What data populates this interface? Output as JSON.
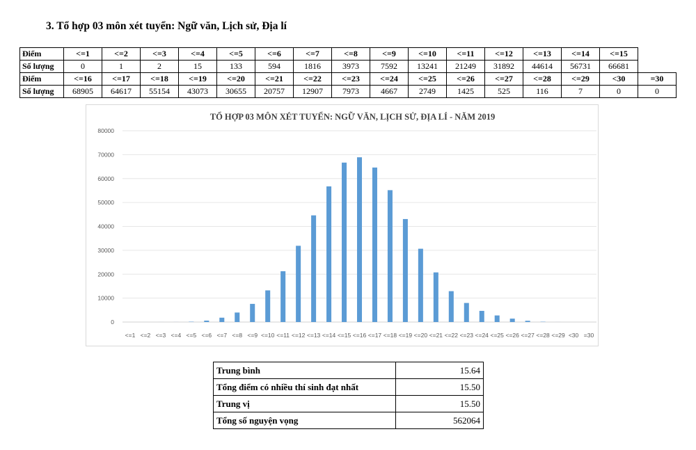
{
  "heading": "3. Tổ hợp 03 môn xét tuyển: Ngữ văn, Lịch sử, Địa lí",
  "score_table": {
    "row_label_score": "Điểm",
    "row_label_count": "Số lượng",
    "block1": {
      "scores": [
        "<=1",
        "<=2",
        "<=3",
        "<=4",
        "<=5",
        "<=6",
        "<=7",
        "<=8",
        "<=9",
        "<=10",
        "<=11",
        "<=12",
        "<=13",
        "<=14",
        "<=15"
      ],
      "counts": [
        "0",
        "1",
        "2",
        "15",
        "133",
        "594",
        "1816",
        "3973",
        "7592",
        "13241",
        "21249",
        "31892",
        "44614",
        "56731",
        "66681"
      ]
    },
    "block2": {
      "scores": [
        "<=16",
        "<=17",
        "<=18",
        "<=19",
        "<=20",
        "<=21",
        "<=22",
        "<=23",
        "<=24",
        "<=25",
        "<=26",
        "<=27",
        "<=28",
        "<=29",
        "<30",
        "=30"
      ],
      "counts": [
        "68905",
        "64617",
        "55154",
        "43073",
        "30655",
        "20757",
        "12907",
        "7973",
        "4667",
        "2749",
        "1425",
        "525",
        "116",
        "7",
        "0",
        "0"
      ]
    }
  },
  "chart_data": {
    "type": "bar",
    "title": "TỔ HỢP 03 MÔN XÉT TUYỂN: NGỮ VĂN, LỊCH SỬ, ĐỊA LÍ - NĂM 2019",
    "categories": [
      "<=1",
      "<=2",
      "<=3",
      "<=4",
      "<=5",
      "<=6",
      "<=7",
      "<=8",
      "<=9",
      "<=10",
      "<=11",
      "<=12",
      "<=13",
      "<=14",
      "<=15",
      "<=16",
      "<=17",
      "<=18",
      "<=19",
      "<=20",
      "<=21",
      "<=22",
      "<=23",
      "<=24",
      "<=25",
      "<=26",
      "<=27",
      "<=28",
      "<=29",
      "<30",
      "=30"
    ],
    "values": [
      0,
      1,
      2,
      15,
      133,
      594,
      1816,
      3973,
      7592,
      13241,
      21249,
      31892,
      44614,
      56731,
      66681,
      68905,
      64617,
      55154,
      43073,
      30655,
      20757,
      12907,
      7973,
      4667,
      2749,
      1425,
      525,
      116,
      7,
      0,
      0
    ],
    "ylim": [
      0,
      80000
    ],
    "yticks": [
      0,
      10000,
      20000,
      30000,
      40000,
      50000,
      60000,
      70000,
      80000
    ],
    "xlabel": "",
    "ylabel": "",
    "grid": true,
    "bar_color": "#5b9bd5"
  },
  "stats": [
    {
      "label": "Trung bình",
      "value": "15.64"
    },
    {
      "label": "Tổng điểm có nhiều thí sinh đạt nhất",
      "value": "15.50"
    },
    {
      "label": "Trung vị",
      "value": "15.50"
    },
    {
      "label": "Tổng số nguyện vọng",
      "value": "562064"
    }
  ]
}
